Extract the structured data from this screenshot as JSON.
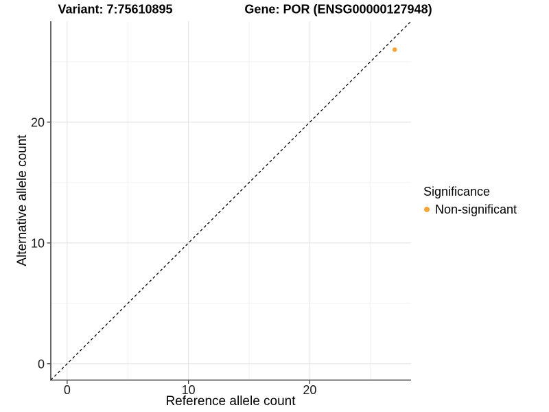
{
  "chart_data": {
    "type": "scatter",
    "titles": {
      "left": "Variant: 7:75610895",
      "right": "Gene: POR (ENSG00000127948)"
    },
    "xlabel": "Reference allele count",
    "ylabel": "Alternative allele count",
    "xlim": [
      -1.35,
      28.35
    ],
    "ylim": [
      -1.35,
      28.35
    ],
    "x_major_ticks": [
      0,
      10,
      20
    ],
    "y_major_ticks": [
      0,
      10,
      20
    ],
    "x_minor_ticks": [
      5,
      15,
      25
    ],
    "y_minor_ticks": [
      5,
      15,
      25
    ],
    "grid": {
      "major_color": "#E3E3E3",
      "minor_color": "#EFEFEF"
    },
    "series": [
      {
        "name": "Non-significant",
        "color": "#FAA43A",
        "points": [
          {
            "x": 27,
            "y": 26
          }
        ]
      }
    ],
    "reference_line": {
      "kind": "identity",
      "style": "dashed",
      "color": "#000000"
    },
    "legend": {
      "title": "Significance",
      "position": "right",
      "items": [
        {
          "label": "Non-significant",
          "color": "#FAA43A"
        }
      ]
    },
    "colors": {
      "axis_line": "#3d3d3d",
      "tick_mark": "#333333",
      "tick_text": "#1a1a1a",
      "background": "#ffffff"
    }
  }
}
